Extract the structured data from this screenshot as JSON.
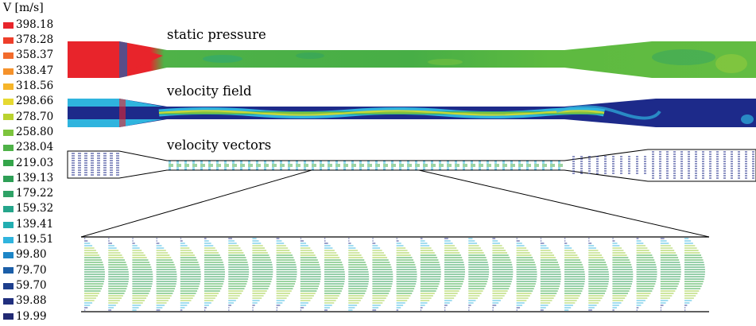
{
  "legend": {
    "title": "V [m/s]",
    "items": [
      {
        "label": "398.18",
        "color": "#e8242b"
      },
      {
        "label": "378.28",
        "color": "#ee3e2a"
      },
      {
        "label": "358.37",
        "color": "#f26b2c"
      },
      {
        "label": "338.47",
        "color": "#f5922b"
      },
      {
        "label": "318.56",
        "color": "#f6b52a"
      },
      {
        "label": "298.66",
        "color": "#e6d931"
      },
      {
        "label": "278.70",
        "color": "#b9d22f"
      },
      {
        "label": "258.80",
        "color": "#7dc43d"
      },
      {
        "label": "238.04",
        "color": "#4fb248"
      },
      {
        "label": "219.03",
        "color": "#34a54a"
      },
      {
        "label": "139.13",
        "color": "#2e9f56"
      },
      {
        "label": "179.22",
        "color": "#2ea266"
      },
      {
        "label": "159.32",
        "color": "#25a58b"
      },
      {
        "label": "139.41",
        "color": "#22aeb1"
      },
      {
        "label": "119.51",
        "color": "#2fb4de"
      },
      {
        "label": "99.80",
        "color": "#1d86c7"
      },
      {
        "label": "79.70",
        "color": "#1b5ea8"
      },
      {
        "label": "59.70",
        "color": "#1e3f8d"
      },
      {
        "label": "39.88",
        "color": "#202f7e"
      },
      {
        "label": "19.99",
        "color": "#222a73"
      }
    ]
  },
  "panels": {
    "static_pressure": {
      "label": "static pressure"
    },
    "velocity_field": {
      "label": "velocity field"
    },
    "velocity_vectors": {
      "label": "velocity vectors"
    }
  },
  "palette": {
    "red": "#e8242b",
    "green": "#3aa845",
    "light_green": "#9ccd3c",
    "cyan": "#2fb4de",
    "dark_blue": "#1d2a8a",
    "outline": "#000000"
  }
}
